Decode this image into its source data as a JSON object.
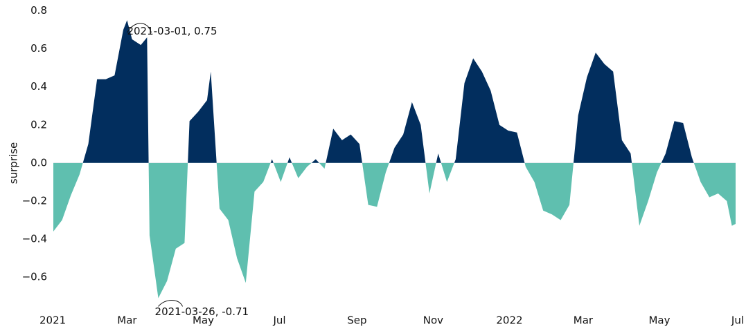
{
  "chart_data": {
    "type": "area",
    "ylabel": "surprise",
    "color_positive": "#022e5e",
    "color_negative": "#5fbfaf",
    "x": [
      "2021-01-01",
      "2021-01-08",
      "2021-01-15",
      "2021-01-22",
      "2021-01-29",
      "2021-02-05",
      "2021-02-12",
      "2021-02-19",
      "2021-02-26",
      "2021-03-01",
      "2021-03-05",
      "2021-03-12",
      "2021-03-17",
      "2021-03-19",
      "2021-03-26",
      "2021-04-02",
      "2021-04-09",
      "2021-04-16",
      "2021-04-20",
      "2021-04-27",
      "2021-05-04",
      "2021-05-07",
      "2021-05-14",
      "2021-05-21",
      "2021-05-28",
      "2021-06-04",
      "2021-06-11",
      "2021-06-18",
      "2021-06-25",
      "2021-07-02",
      "2021-07-09",
      "2021-07-16",
      "2021-07-23",
      "2021-07-30",
      "2021-08-06",
      "2021-08-13",
      "2021-08-20",
      "2021-08-27",
      "2021-09-03",
      "2021-09-10",
      "2021-09-17",
      "2021-09-24",
      "2021-10-01",
      "2021-10-08",
      "2021-10-15",
      "2021-10-22",
      "2021-10-29",
      "2021-11-05",
      "2021-11-12",
      "2021-11-19",
      "2021-11-26",
      "2021-12-03",
      "2021-12-10",
      "2021-12-17",
      "2021-12-24",
      "2021-12-31",
      "2022-01-07",
      "2022-01-14",
      "2022-01-21",
      "2022-01-28",
      "2022-02-04",
      "2022-02-11",
      "2022-02-18",
      "2022-02-25",
      "2022-03-04",
      "2022-03-11",
      "2022-03-18",
      "2022-03-25",
      "2022-04-01",
      "2022-04-08",
      "2022-04-15",
      "2022-04-22",
      "2022-04-29",
      "2022-05-06",
      "2022-05-13",
      "2022-05-20",
      "2022-05-27",
      "2022-06-03",
      "2022-06-10",
      "2022-06-17",
      "2022-06-24",
      "2022-06-28",
      "2022-07-01"
    ],
    "values": [
      -0.36,
      -0.3,
      -0.17,
      -0.06,
      0.1,
      0.44,
      0.44,
      0.46,
      0.7,
      0.75,
      0.65,
      0.62,
      0.66,
      -0.38,
      -0.71,
      -0.62,
      -0.45,
      -0.42,
      0.22,
      0.27,
      0.33,
      0.48,
      -0.24,
      -0.3,
      -0.5,
      -0.63,
      -0.15,
      -0.1,
      0.02,
      -0.1,
      0.03,
      -0.08,
      -0.02,
      0.02,
      -0.03,
      0.18,
      0.12,
      0.15,
      0.1,
      -0.22,
      -0.23,
      -0.05,
      0.08,
      0.15,
      0.32,
      0.2,
      -0.16,
      0.05,
      -0.1,
      0.02,
      0.42,
      0.55,
      0.48,
      0.38,
      0.2,
      0.17,
      0.16,
      -0.02,
      -0.1,
      -0.25,
      -0.27,
      -0.3,
      -0.22,
      0.25,
      0.45,
      0.58,
      0.52,
      0.48,
      0.12,
      0.05,
      -0.33,
      -0.2,
      -0.05,
      0.05,
      0.22,
      0.21,
      0.03,
      -0.1,
      -0.18,
      -0.16,
      -0.2,
      -0.33,
      -0.32
    ],
    "xlim": [
      "2021-01-01",
      "2022-07-01"
    ],
    "xticks": [
      {
        "value": "2021-01-01",
        "label": "2021"
      },
      {
        "value": "2021-03-01",
        "label": "Mar"
      },
      {
        "value": "2021-05-01",
        "label": "May"
      },
      {
        "value": "2021-07-01",
        "label": "Jul"
      },
      {
        "value": "2021-09-01",
        "label": "Sep"
      },
      {
        "value": "2021-11-01",
        "label": "Nov"
      },
      {
        "value": "2022-01-01",
        "label": "2022"
      },
      {
        "value": "2022-03-01",
        "label": "Mar"
      },
      {
        "value": "2022-05-01",
        "label": "May"
      },
      {
        "value": "2022-07-01",
        "label": "Jul"
      }
    ],
    "ylim": [
      -0.77,
      0.82
    ],
    "yticks": [
      {
        "value": 0.8,
        "label": "0.8"
      },
      {
        "value": 0.6,
        "label": "0.6"
      },
      {
        "value": 0.4,
        "label": "0.4"
      },
      {
        "value": 0.2,
        "label": "0.2"
      },
      {
        "value": 0,
        "label": "0.0"
      },
      {
        "value": -0.2,
        "label": "−0.2"
      },
      {
        "value": -0.4,
        "label": "−0.4"
      },
      {
        "value": -0.6,
        "label": "−0.6"
      }
    ],
    "annotations": [
      {
        "text": "2021-03-01, 0.75",
        "x": "2021-03-01",
        "y": 0.75
      },
      {
        "text": "2021-03-26, -0.71",
        "x": "2021-03-26",
        "y": -0.71
      }
    ]
  }
}
